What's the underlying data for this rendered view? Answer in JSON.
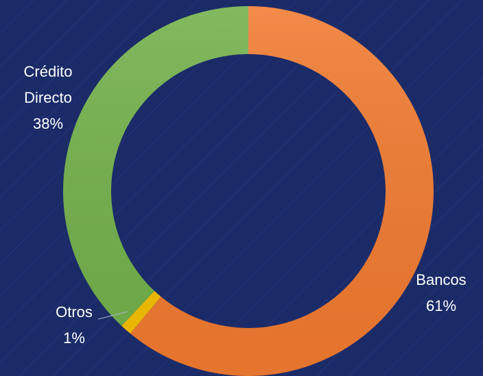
{
  "chart_data": {
    "type": "donut",
    "categories": [
      "Bancos",
      "Otros",
      "Crédito Directo"
    ],
    "values": [
      61,
      1,
      38
    ],
    "value_labels": [
      "61%",
      "1%",
      "38%"
    ],
    "colors": [
      "#f07a30",
      "#f5c000",
      "#72b04a"
    ]
  }
}
